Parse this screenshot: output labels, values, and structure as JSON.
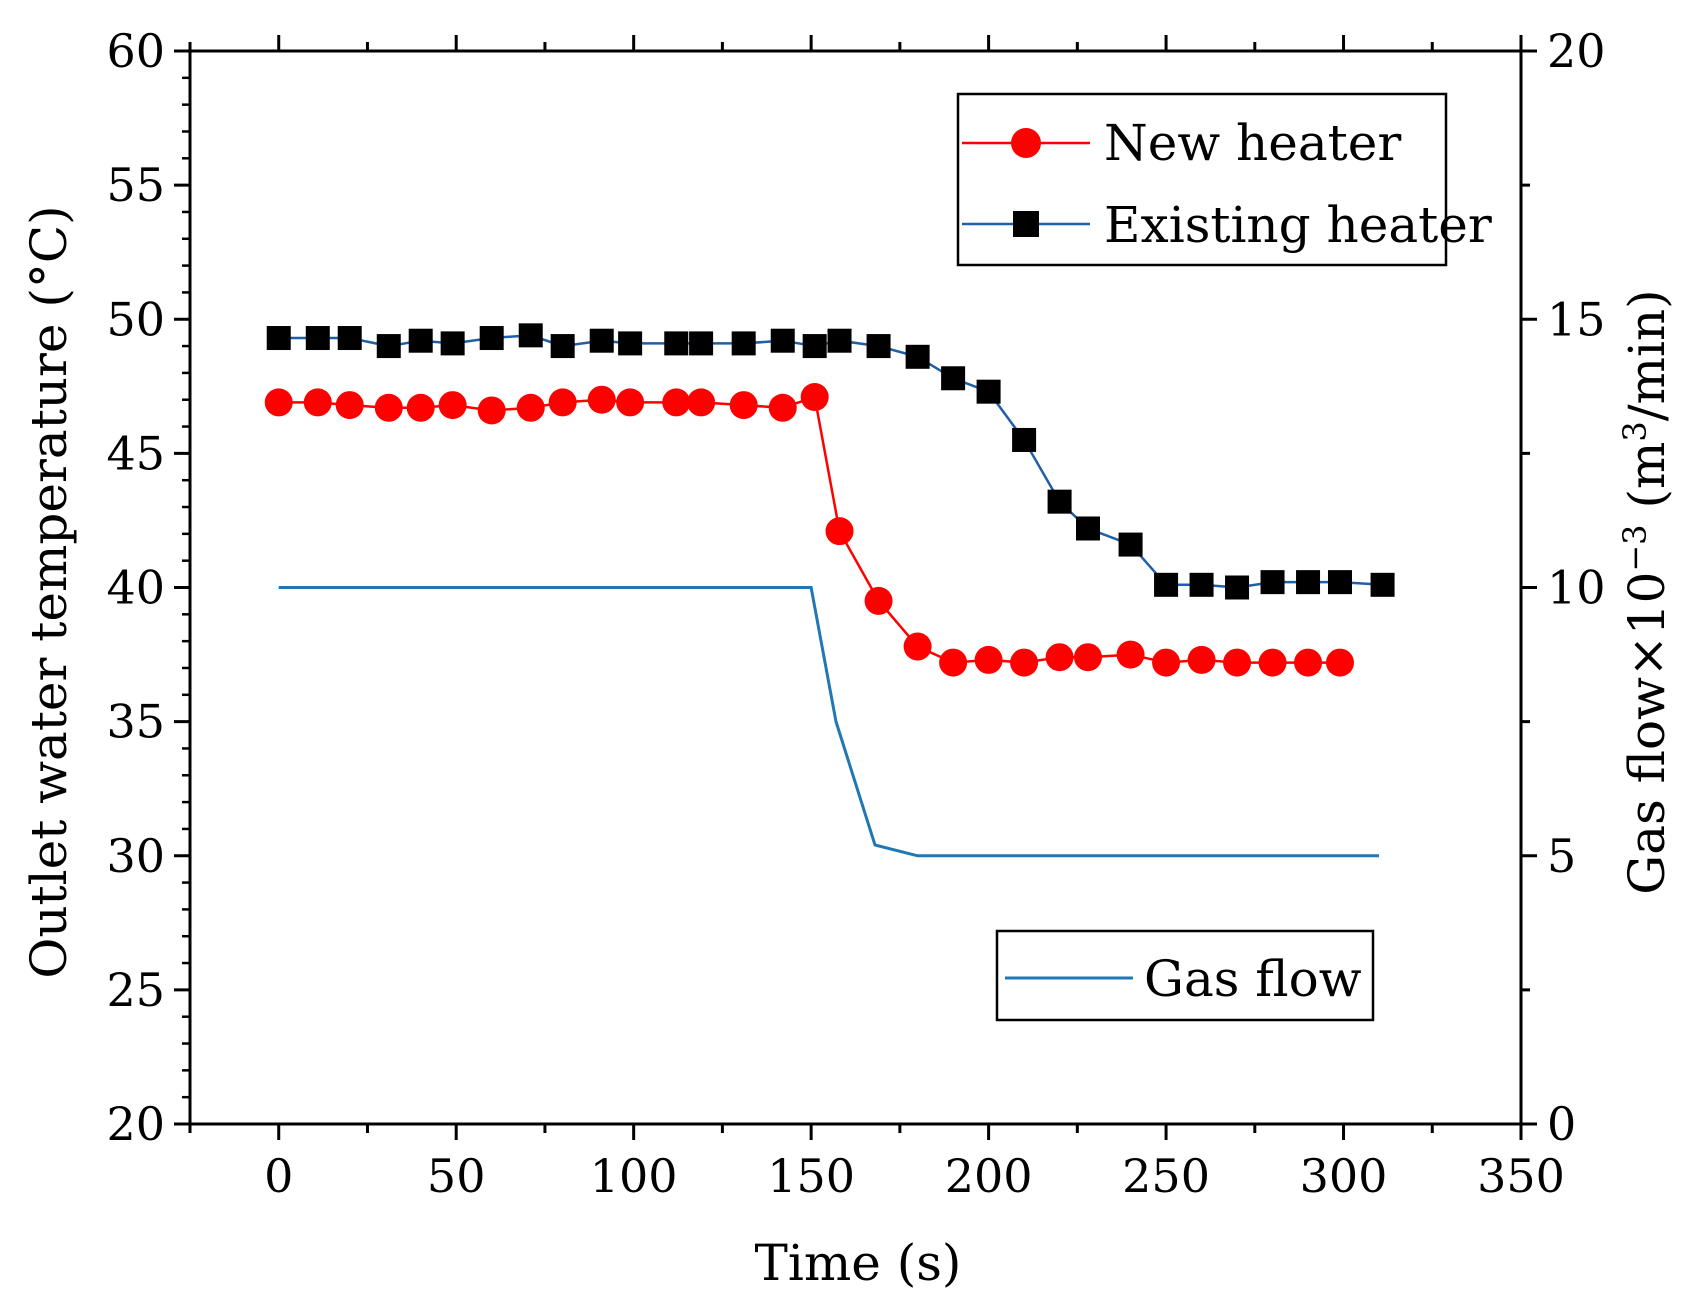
{
  "chart_data": {
    "type": "line",
    "x_axis": {
      "label": "Time (s)",
      "range": [
        -25,
        350
      ],
      "ticks": [
        0,
        50,
        100,
        150,
        200,
        250,
        300,
        350
      ],
      "tick_labels": [
        "0",
        "50",
        "100",
        "150",
        "200",
        "250",
        "300",
        "350"
      ]
    },
    "y_left": {
      "label": "Outlet water temperature (°C)",
      "range": [
        20,
        60
      ],
      "ticks": [
        20,
        25,
        30,
        35,
        40,
        45,
        50,
        55,
        60
      ],
      "tick_labels": [
        "20",
        "25",
        "30",
        "35",
        "40",
        "45",
        "50",
        "55",
        "60"
      ]
    },
    "y_right": {
      "label_prefix": "Gas flow×10",
      "label_exp": "−3",
      "label_mid": " (m",
      "label_unit_exp": "3",
      "label_suffix": "/min)",
      "range": [
        0,
        20
      ],
      "ticks": [
        0,
        5,
        10,
        15,
        20
      ],
      "tick_labels": [
        "0",
        "5",
        "10",
        "15",
        "20"
      ]
    },
    "series": [
      {
        "name": "New heater",
        "axis": "left",
        "color": "#ff0000",
        "line_color": "#ff0000",
        "marker": "circle",
        "x": [
          0,
          11,
          20,
          31,
          40,
          49,
          60,
          71,
          80,
          91,
          99,
          112,
          119,
          131,
          142,
          151,
          158,
          169,
          180,
          190,
          200,
          210,
          220,
          228,
          240,
          250,
          260,
          270,
          280,
          290,
          299
        ],
        "y": [
          46.9,
          46.9,
          46.8,
          46.7,
          46.7,
          46.8,
          46.6,
          46.7,
          46.9,
          47.0,
          46.9,
          46.9,
          46.9,
          46.8,
          46.7,
          47.1,
          42.1,
          39.5,
          37.8,
          37.2,
          37.3,
          37.2,
          37.4,
          37.4,
          37.5,
          37.2,
          37.3,
          37.2,
          37.2,
          37.2,
          37.2
        ]
      },
      {
        "name": "Existing heater",
        "axis": "left",
        "color": "#000000",
        "line_color": "#1f5fa8",
        "marker": "square",
        "x": [
          0,
          11,
          20,
          31,
          40,
          49,
          60,
          71,
          80,
          91,
          99,
          112,
          119,
          131,
          142,
          151,
          158,
          169,
          180,
          190,
          200,
          210,
          220,
          228,
          240,
          250,
          260,
          270,
          280,
          290,
          299,
          311
        ],
        "y": [
          49.3,
          49.3,
          49.3,
          49.0,
          49.2,
          49.1,
          49.3,
          49.4,
          49.0,
          49.2,
          49.1,
          49.1,
          49.1,
          49.1,
          49.2,
          49.0,
          49.2,
          49.0,
          48.6,
          47.8,
          47.3,
          45.5,
          43.2,
          42.2,
          41.6,
          40.1,
          40.1,
          40.0,
          40.2,
          40.2,
          40.2,
          40.1
        ]
      },
      {
        "name": "Gas flow",
        "axis": "right",
        "color": "#1f77b4",
        "line_color": "#1f77b4",
        "marker": "none",
        "x": [
          0,
          150,
          157,
          168,
          180,
          310
        ],
        "y": [
          10,
          10,
          7.5,
          5.2,
          5.0,
          5.0
        ]
      }
    ],
    "legend_top": [
      "New heater",
      "Existing heater"
    ],
    "legend_bottom": [
      "Gas flow"
    ],
    "legend_top_placement": "top-right",
    "legend_bottom_placement": "lower-right"
  }
}
